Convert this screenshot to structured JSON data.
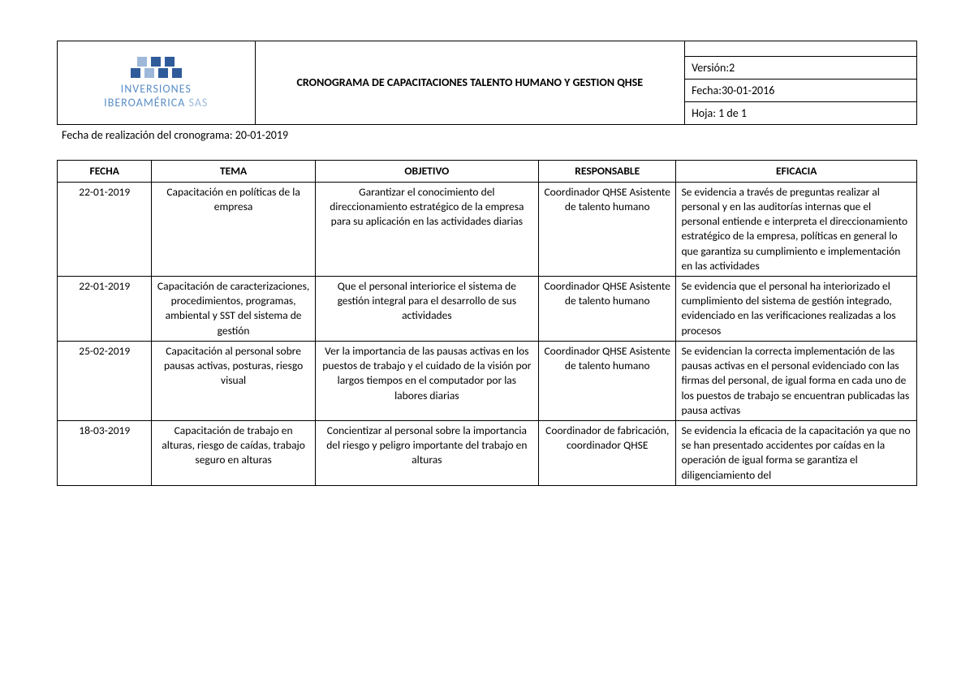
{
  "logo": {
    "line1": "INVERSIONES",
    "line2_a": "IBEROAMÉRICA",
    "line2_b": "SAS",
    "color_primary": "#5b8fc7",
    "color_light": "#9db8d8",
    "square_colors": [
      "#9db8d8",
      "#2f5b9a",
      "#2f5b9a",
      "#2f5b9a",
      "#9db8d8",
      "#2f5b9a",
      "#2f5b9a"
    ]
  },
  "header": {
    "title": "CRONOGRAMA DE CAPACITACIONES TALENTO HUMANO Y GESTION QHSE",
    "version_label": "Versión:",
    "version_value": "2",
    "fecha_label": "Fecha:",
    "fecha_value": "30-01-2016",
    "hoja_label": "Hoja:",
    "hoja_value": "1 de 1"
  },
  "subheader": "Fecha de realización del cronograma: 20-01-2019",
  "columns": {
    "fecha": "FECHA",
    "tema": "TEMA",
    "objetivo": "OBJETIVO",
    "responsable": "RESPONSABLE",
    "eficacia": "EFICACIA"
  },
  "rows": [
    {
      "fecha": "22-01-2019",
      "tema": "Capacitación en políticas de la empresa",
      "objetivo": "Garantizar el conocimiento del direccionamiento estratégico de la empresa para su aplicación en las actividades diarias",
      "responsable": "Coordinador QHSE Asistente de talento humano",
      "eficacia": "Se evidencia a través de preguntas realizar al personal  y en las auditorías internas que el personal entiende e interpreta el direccionamiento estratégico de la empresa, políticas en general  lo que garantiza su cumplimiento  e implementación en las actividades"
    },
    {
      "fecha": "22-01-2019",
      "tema": "Capacitación de caracterizaciones, procedimientos, programas, ambiental y SST del sistema de gestión",
      "objetivo": "Que el personal interiorice el sistema de gestión integral para el desarrollo de sus actividades",
      "responsable": "Coordinador QHSE Asistente de talento humano",
      "eficacia": "Se evidencia que el  personal ha interiorizado el cumplimiento del sistema de gestión integrado, evidenciado en las verificaciones realizadas a los procesos"
    },
    {
      "fecha": "25-02-2019",
      "tema": "Capacitación al personal sobre pausas activas, posturas, riesgo visual",
      "objetivo": "Ver la importancia de las pausas activas en los puestos de trabajo y el cuidado de la visión por largos tiempos en el computador por las labores diarias",
      "responsable": "Coordinador QHSE Asistente de talento humano",
      "eficacia": "Se evidencian la correcta implementación de las pausas activas en el personal  evidenciado con las firmas del personal, de igual forma en cada uno de los puestos de trabajo se encuentran publicadas las pausa activas"
    },
    {
      "fecha": "18-03-2019",
      "tema": "Capacitación de trabajo en alturas, riesgo de caídas, trabajo seguro en alturas",
      "objetivo": "Concientizar al personal sobre la importancia del riesgo y peligro importante del trabajo en alturas",
      "responsable": "Coordinador de fabricación, coordinador QHSE",
      "eficacia": "Se evidencia la eficacia de la capacitación ya que no se han presentado accidentes por caídas en la operación de igual forma se garantiza el diligenciamiento del"
    }
  ]
}
